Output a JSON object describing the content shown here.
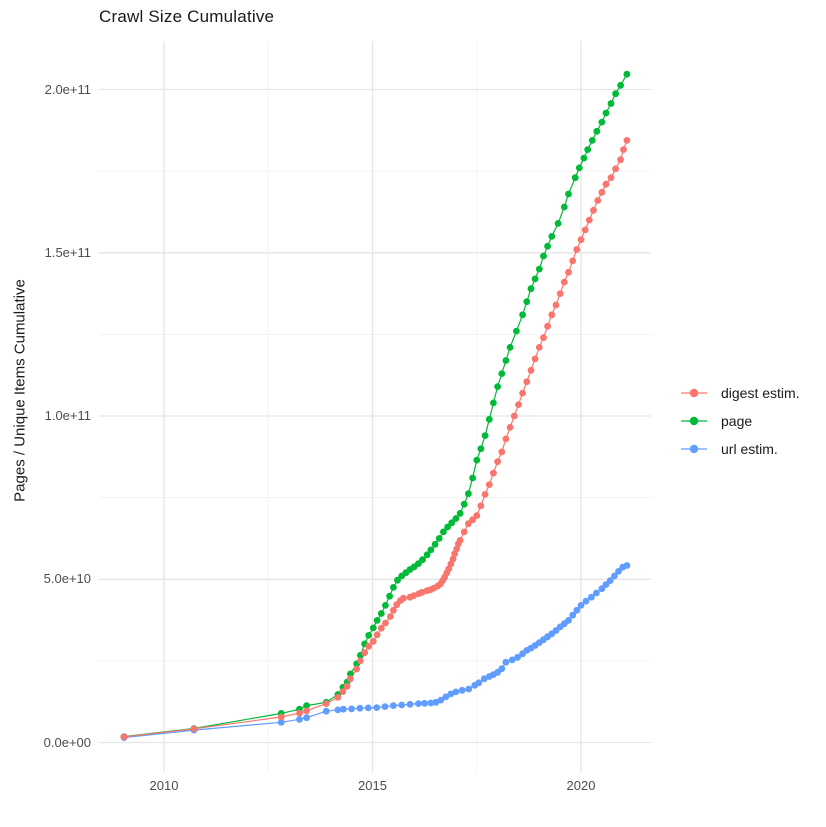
{
  "chart_data": {
    "type": "scatter",
    "title": "Crawl Size Cumulative",
    "xlabel": "",
    "ylabel": "Pages / Unique Items Cumulative",
    "value_unit": "1e10 pages (y values below are in units of 1e10)",
    "legend_position": "right",
    "grid": true,
    "x_axis": {
      "ticks": [
        {
          "label": "2010",
          "year": 2010
        },
        {
          "label": "2015",
          "year": 2015
        },
        {
          "label": "2020",
          "year": 2020
        }
      ],
      "minor": [
        2012.5,
        2017.5
      ],
      "range": [
        2008.4,
        2021.7
      ]
    },
    "y_axis": {
      "ticks": [
        {
          "label": "0.0e+00",
          "value": 0
        },
        {
          "label": "5.0e+10",
          "value": 5
        },
        {
          "label": "1.0e+11",
          "value": 10
        },
        {
          "label": "1.5e+11",
          "value": 15
        },
        {
          "label": "2.0e+11",
          "value": 20
        }
      ],
      "minor": [
        2.5,
        7.5,
        12.5,
        17.5
      ],
      "range": [
        -1.0,
        21.5
      ]
    },
    "series": [
      {
        "name": "digest estim.",
        "color": "#F8766D",
        "points": [
          [
            2009.04,
            0.17
          ],
          [
            2010.72,
            0.42
          ],
          [
            2012.81,
            0.78
          ],
          [
            2013.25,
            0.9
          ],
          [
            2013.42,
            0.97
          ],
          [
            2013.89,
            1.19
          ],
          [
            2014.17,
            1.38
          ],
          [
            2014.29,
            1.56
          ],
          [
            2014.39,
            1.72
          ],
          [
            2014.47,
            1.95
          ],
          [
            2014.62,
            2.25
          ],
          [
            2014.71,
            2.5
          ],
          [
            2014.81,
            2.75
          ],
          [
            2014.91,
            2.95
          ],
          [
            2015.02,
            3.1
          ],
          [
            2015.11,
            3.3
          ],
          [
            2015.21,
            3.5
          ],
          [
            2015.31,
            3.66
          ],
          [
            2015.43,
            3.86
          ],
          [
            2015.5,
            4.05
          ],
          [
            2015.58,
            4.22
          ],
          [
            2015.67,
            4.35
          ],
          [
            2015.74,
            4.42
          ],
          [
            2015.9,
            4.45
          ],
          [
            2015.99,
            4.5
          ],
          [
            2016.11,
            4.56
          ],
          [
            2016.19,
            4.6
          ],
          [
            2016.31,
            4.65
          ],
          [
            2016.39,
            4.68
          ],
          [
            2016.47,
            4.73
          ],
          [
            2016.56,
            4.79
          ],
          [
            2016.63,
            4.86
          ],
          [
            2016.68,
            4.96
          ],
          [
            2016.73,
            5.06
          ],
          [
            2016.78,
            5.19
          ],
          [
            2016.83,
            5.32
          ],
          [
            2016.88,
            5.47
          ],
          [
            2016.93,
            5.62
          ],
          [
            2016.97,
            5.78
          ],
          [
            2017.02,
            5.93
          ],
          [
            2017.06,
            6.09
          ],
          [
            2017.1,
            6.19
          ],
          [
            2017.2,
            6.45
          ],
          [
            2017.3,
            6.7
          ],
          [
            2017.4,
            6.82
          ],
          [
            2017.5,
            6.95
          ],
          [
            2017.6,
            7.25
          ],
          [
            2017.7,
            7.6
          ],
          [
            2017.8,
            7.9
          ],
          [
            2017.9,
            8.25
          ],
          [
            2018.0,
            8.6
          ],
          [
            2018.1,
            8.9
          ],
          [
            2018.2,
            9.3
          ],
          [
            2018.3,
            9.65
          ],
          [
            2018.4,
            10.0
          ],
          [
            2018.5,
            10.35
          ],
          [
            2018.6,
            10.7
          ],
          [
            2018.7,
            11.05
          ],
          [
            2018.8,
            11.4
          ],
          [
            2018.9,
            11.75
          ],
          [
            2019.0,
            12.1
          ],
          [
            2019.1,
            12.4
          ],
          [
            2019.2,
            12.75
          ],
          [
            2019.3,
            13.1
          ],
          [
            2019.4,
            13.4
          ],
          [
            2019.5,
            13.75
          ],
          [
            2019.6,
            14.1
          ],
          [
            2019.7,
            14.4
          ],
          [
            2019.8,
            14.75
          ],
          [
            2019.9,
            15.1
          ],
          [
            2020.0,
            15.4
          ],
          [
            2020.1,
            15.7
          ],
          [
            2020.2,
            16.0
          ],
          [
            2020.3,
            16.3
          ],
          [
            2020.4,
            16.6
          ],
          [
            2020.5,
            16.85
          ],
          [
            2020.6,
            17.1
          ],
          [
            2020.72,
            17.3
          ],
          [
            2020.83,
            17.57
          ],
          [
            2020.95,
            17.85
          ],
          [
            2021.02,
            18.16
          ],
          [
            2021.1,
            18.44
          ]
        ]
      },
      {
        "name": "page",
        "color": "#00BA38",
        "points": [
          [
            2009.04,
            0.18
          ],
          [
            2010.72,
            0.43
          ],
          [
            2012.81,
            0.89
          ],
          [
            2013.25,
            1.02
          ],
          [
            2013.42,
            1.13
          ],
          [
            2013.89,
            1.23
          ],
          [
            2014.17,
            1.47
          ],
          [
            2014.29,
            1.69
          ],
          [
            2014.39,
            1.85
          ],
          [
            2014.47,
            2.1
          ],
          [
            2014.62,
            2.41
          ],
          [
            2014.71,
            2.67
          ],
          [
            2014.81,
            3.02
          ],
          [
            2014.91,
            3.28
          ],
          [
            2015.02,
            3.51
          ],
          [
            2015.11,
            3.74
          ],
          [
            2015.21,
            3.95
          ],
          [
            2015.31,
            4.2
          ],
          [
            2015.41,
            4.48
          ],
          [
            2015.5,
            4.75
          ],
          [
            2015.6,
            4.97
          ],
          [
            2015.7,
            5.1
          ],
          [
            2015.8,
            5.2
          ],
          [
            2015.9,
            5.3
          ],
          [
            2016.0,
            5.38
          ],
          [
            2016.1,
            5.48
          ],
          [
            2016.2,
            5.6
          ],
          [
            2016.31,
            5.75
          ],
          [
            2016.4,
            5.9
          ],
          [
            2016.5,
            6.07
          ],
          [
            2016.6,
            6.25
          ],
          [
            2016.7,
            6.45
          ],
          [
            2016.8,
            6.6
          ],
          [
            2016.9,
            6.73
          ],
          [
            2017.0,
            6.86
          ],
          [
            2017.1,
            7.02
          ],
          [
            2017.2,
            7.3
          ],
          [
            2017.3,
            7.62
          ],
          [
            2017.4,
            8.1
          ],
          [
            2017.5,
            8.65
          ],
          [
            2017.6,
            9.0
          ],
          [
            2017.7,
            9.4
          ],
          [
            2017.8,
            9.9
          ],
          [
            2017.9,
            10.4
          ],
          [
            2018.0,
            10.9
          ],
          [
            2018.1,
            11.3
          ],
          [
            2018.2,
            11.7
          ],
          [
            2018.3,
            12.1
          ],
          [
            2018.45,
            12.6
          ],
          [
            2018.6,
            13.1
          ],
          [
            2018.7,
            13.5
          ],
          [
            2018.8,
            13.9
          ],
          [
            2018.9,
            14.2
          ],
          [
            2019.0,
            14.5
          ],
          [
            2019.1,
            14.9
          ],
          [
            2019.2,
            15.2
          ],
          [
            2019.3,
            15.5
          ],
          [
            2019.45,
            15.9
          ],
          [
            2019.6,
            16.4
          ],
          [
            2019.7,
            16.8
          ],
          [
            2019.86,
            17.3
          ],
          [
            2019.96,
            17.6
          ],
          [
            2020.07,
            17.9
          ],
          [
            2020.16,
            18.16
          ],
          [
            2020.27,
            18.44
          ],
          [
            2020.38,
            18.72
          ],
          [
            2020.5,
            19.0
          ],
          [
            2020.6,
            19.28
          ],
          [
            2020.72,
            19.57
          ],
          [
            2020.83,
            19.87
          ],
          [
            2020.95,
            20.13
          ],
          [
            2021.1,
            20.47
          ]
        ]
      },
      {
        "name": "url estim.",
        "color": "#619CFF",
        "points": [
          [
            2009.04,
            0.15
          ],
          [
            2010.72,
            0.38
          ],
          [
            2012.81,
            0.62
          ],
          [
            2013.25,
            0.71
          ],
          [
            2013.42,
            0.76
          ],
          [
            2013.89,
            0.96
          ],
          [
            2014.17,
            1.0
          ],
          [
            2014.3,
            1.02
          ],
          [
            2014.5,
            1.03
          ],
          [
            2014.7,
            1.05
          ],
          [
            2014.9,
            1.06
          ],
          [
            2015.1,
            1.07
          ],
          [
            2015.3,
            1.1
          ],
          [
            2015.5,
            1.13
          ],
          [
            2015.7,
            1.15
          ],
          [
            2015.9,
            1.17
          ],
          [
            2016.1,
            1.19
          ],
          [
            2016.25,
            1.2
          ],
          [
            2016.4,
            1.21
          ],
          [
            2016.52,
            1.23
          ],
          [
            2016.64,
            1.3
          ],
          [
            2016.76,
            1.4
          ],
          [
            2016.88,
            1.49
          ],
          [
            2017.0,
            1.55
          ],
          [
            2017.15,
            1.6
          ],
          [
            2017.31,
            1.64
          ],
          [
            2017.45,
            1.75
          ],
          [
            2017.55,
            1.83
          ],
          [
            2017.68,
            1.95
          ],
          [
            2017.8,
            2.02
          ],
          [
            2017.9,
            2.08
          ],
          [
            2018.0,
            2.15
          ],
          [
            2018.1,
            2.26
          ],
          [
            2018.2,
            2.46
          ],
          [
            2018.35,
            2.53
          ],
          [
            2018.48,
            2.61
          ],
          [
            2018.6,
            2.72
          ],
          [
            2018.7,
            2.82
          ],
          [
            2018.8,
            2.89
          ],
          [
            2018.9,
            2.97
          ],
          [
            2019.0,
            3.06
          ],
          [
            2019.1,
            3.15
          ],
          [
            2019.2,
            3.24
          ],
          [
            2019.3,
            3.33
          ],
          [
            2019.4,
            3.43
          ],
          [
            2019.5,
            3.54
          ],
          [
            2019.6,
            3.64
          ],
          [
            2019.7,
            3.74
          ],
          [
            2019.8,
            3.9
          ],
          [
            2019.9,
            4.05
          ],
          [
            2020.0,
            4.2
          ],
          [
            2020.12,
            4.33
          ],
          [
            2020.25,
            4.45
          ],
          [
            2020.37,
            4.58
          ],
          [
            2020.5,
            4.71
          ],
          [
            2020.6,
            4.84
          ],
          [
            2020.7,
            4.96
          ],
          [
            2020.8,
            5.1
          ],
          [
            2020.9,
            5.24
          ],
          [
            2021.0,
            5.37
          ],
          [
            2021.1,
            5.42
          ]
        ]
      }
    ]
  }
}
